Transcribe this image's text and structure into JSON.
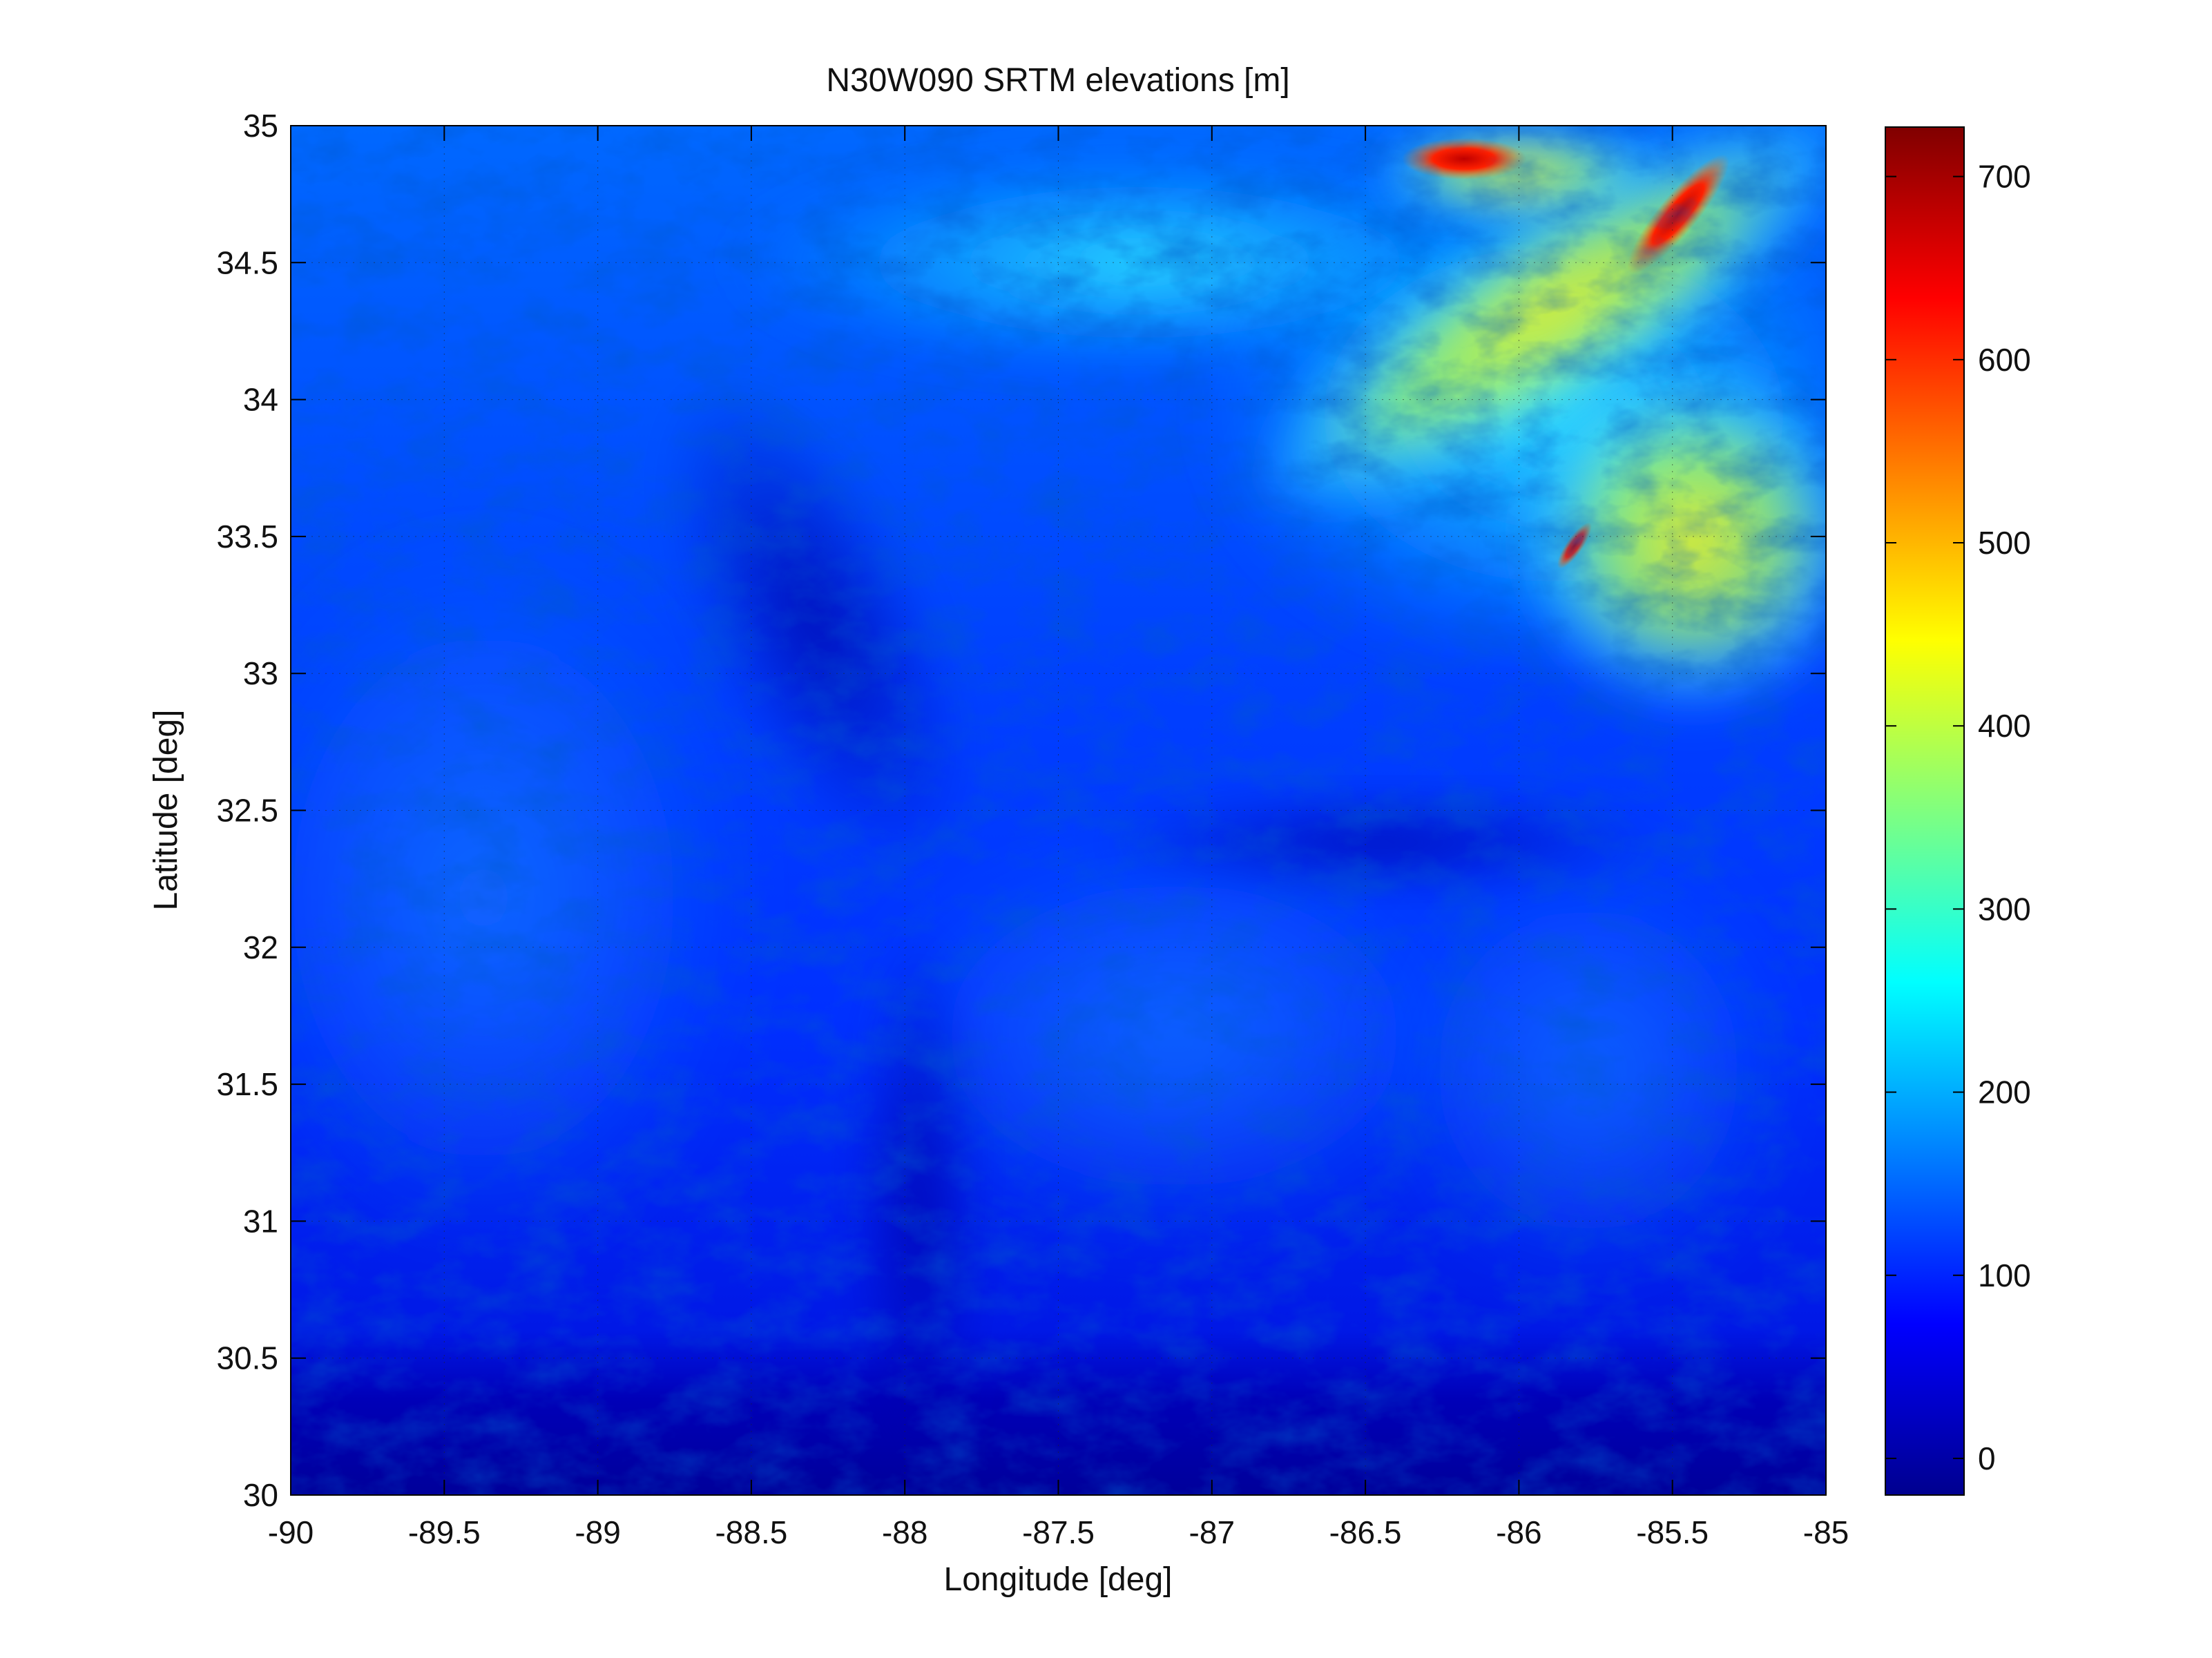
{
  "chart_data": {
    "type": "heatmap",
    "title": "N30W090 SRTM elevations [m]",
    "xlabel": "Longitude [deg]",
    "ylabel": "Latitude [deg]",
    "xlim": [
      -90,
      -85
    ],
    "ylim": [
      30,
      35
    ],
    "x_ticks": [
      -90,
      -89.5,
      -89,
      -88.5,
      -88,
      -87.5,
      -87,
      -86.5,
      -86,
      -85.5,
      -85
    ],
    "y_ticks": [
      30,
      30.5,
      31,
      31.5,
      32,
      32.5,
      33,
      33.5,
      34,
      34.5,
      35
    ],
    "grid": true,
    "colormap": "jet",
    "colorbar": {
      "range": [
        -20,
        727
      ],
      "ticks": [
        0,
        100,
        200,
        300,
        400,
        500,
        600,
        700
      ]
    },
    "colors": {
      "jet": [
        "#00008f",
        "#0000ff",
        "#00ffff",
        "#ffff00",
        "#ff0000",
        "#800000"
      ]
    }
  }
}
